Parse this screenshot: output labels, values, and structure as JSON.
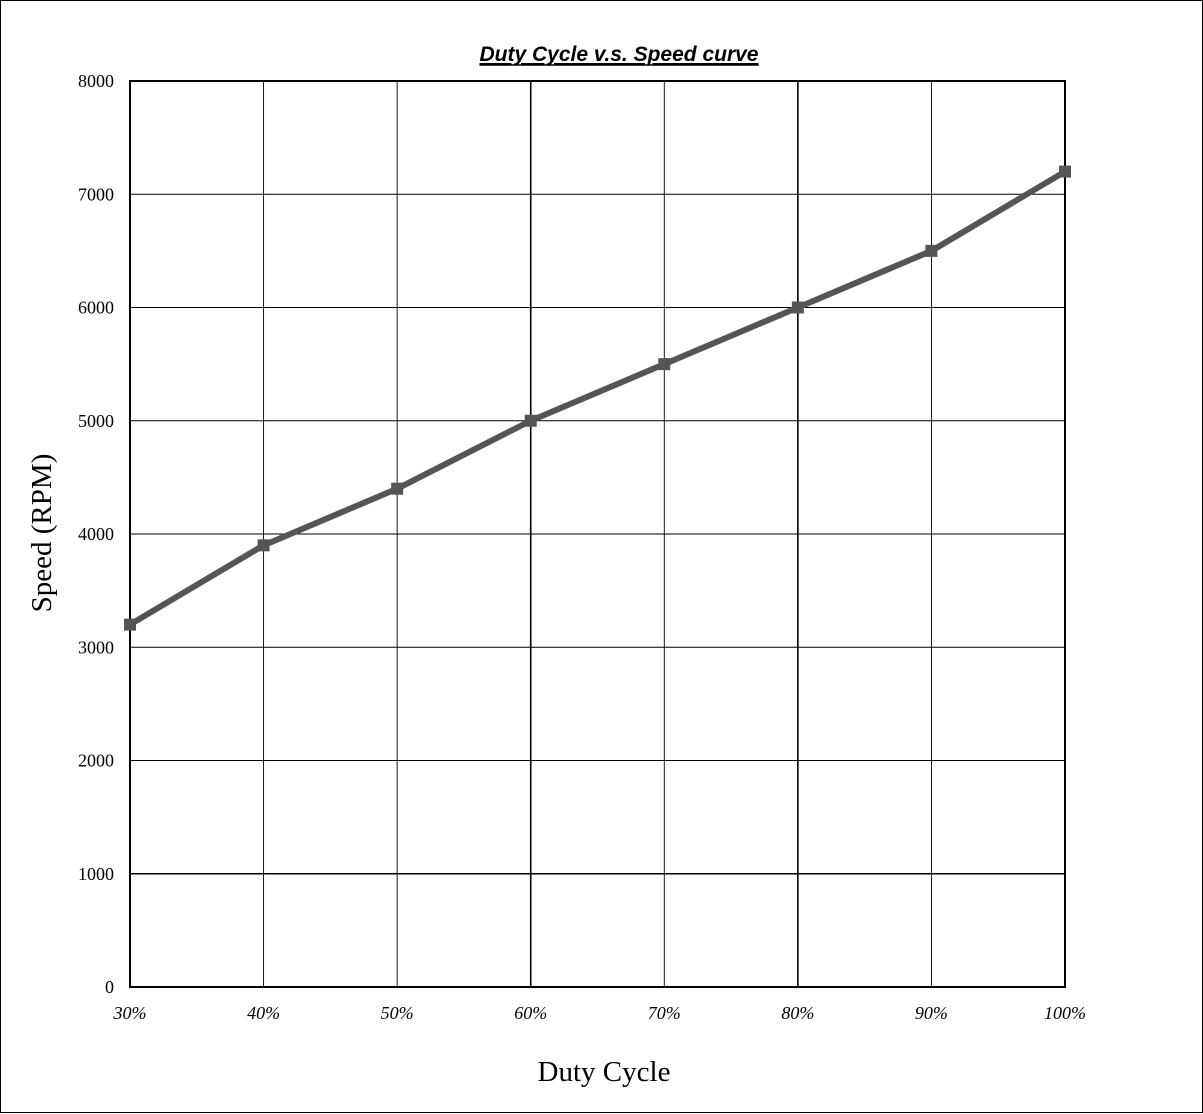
{
  "chart_data": {
    "type": "line",
    "title": "Duty  Cycle v.s. Speed curve",
    "xlabel": "Duty Cycle",
    "ylabel": "Speed (RPM)",
    "categories": [
      "30%",
      "40%",
      "50%",
      "60%",
      "70%",
      "80%",
      "90%",
      "100%"
    ],
    "series": [
      {
        "values": [
          3200,
          3900,
          4400,
          5000,
          5500,
          6000,
          6500,
          7200
        ]
      }
    ],
    "ylim": [
      0,
      8000
    ],
    "yticks": [
      0,
      1000,
      2000,
      3000,
      4000,
      5000,
      6000,
      7000,
      8000
    ],
    "grid": true,
    "line_color": "#555555",
    "marker": "square"
  }
}
